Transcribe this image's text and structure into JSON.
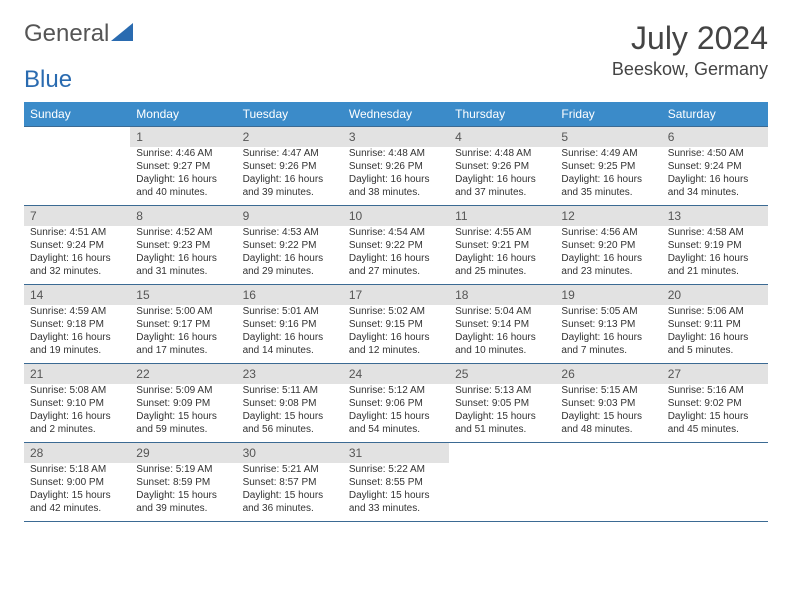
{
  "logo": {
    "text1": "General",
    "text2": "Blue"
  },
  "title": "July 2024",
  "location": "Beeskow, Germany",
  "header_bg": "#3b8bc9",
  "daynum_bg": "#e2e2e2",
  "border_color": "#3b6a93",
  "text_color": "#333333",
  "weekdays": [
    "Sunday",
    "Monday",
    "Tuesday",
    "Wednesday",
    "Thursday",
    "Friday",
    "Saturday"
  ],
  "weeks": [
    {
      "nums": [
        "",
        "1",
        "2",
        "3",
        "4",
        "5",
        "6"
      ],
      "cells": [
        null,
        {
          "sr": "Sunrise: 4:46 AM",
          "ss": "Sunset: 9:27 PM",
          "dl": "Daylight: 16 hours and 40 minutes."
        },
        {
          "sr": "Sunrise: 4:47 AM",
          "ss": "Sunset: 9:26 PM",
          "dl": "Daylight: 16 hours and 39 minutes."
        },
        {
          "sr": "Sunrise: 4:48 AM",
          "ss": "Sunset: 9:26 PM",
          "dl": "Daylight: 16 hours and 38 minutes."
        },
        {
          "sr": "Sunrise: 4:48 AM",
          "ss": "Sunset: 9:26 PM",
          "dl": "Daylight: 16 hours and 37 minutes."
        },
        {
          "sr": "Sunrise: 4:49 AM",
          "ss": "Sunset: 9:25 PM",
          "dl": "Daylight: 16 hours and 35 minutes."
        },
        {
          "sr": "Sunrise: 4:50 AM",
          "ss": "Sunset: 9:24 PM",
          "dl": "Daylight: 16 hours and 34 minutes."
        }
      ]
    },
    {
      "nums": [
        "7",
        "8",
        "9",
        "10",
        "11",
        "12",
        "13"
      ],
      "cells": [
        {
          "sr": "Sunrise: 4:51 AM",
          "ss": "Sunset: 9:24 PM",
          "dl": "Daylight: 16 hours and 32 minutes."
        },
        {
          "sr": "Sunrise: 4:52 AM",
          "ss": "Sunset: 9:23 PM",
          "dl": "Daylight: 16 hours and 31 minutes."
        },
        {
          "sr": "Sunrise: 4:53 AM",
          "ss": "Sunset: 9:22 PM",
          "dl": "Daylight: 16 hours and 29 minutes."
        },
        {
          "sr": "Sunrise: 4:54 AM",
          "ss": "Sunset: 9:22 PM",
          "dl": "Daylight: 16 hours and 27 minutes."
        },
        {
          "sr": "Sunrise: 4:55 AM",
          "ss": "Sunset: 9:21 PM",
          "dl": "Daylight: 16 hours and 25 minutes."
        },
        {
          "sr": "Sunrise: 4:56 AM",
          "ss": "Sunset: 9:20 PM",
          "dl": "Daylight: 16 hours and 23 minutes."
        },
        {
          "sr": "Sunrise: 4:58 AM",
          "ss": "Sunset: 9:19 PM",
          "dl": "Daylight: 16 hours and 21 minutes."
        }
      ]
    },
    {
      "nums": [
        "14",
        "15",
        "16",
        "17",
        "18",
        "19",
        "20"
      ],
      "cells": [
        {
          "sr": "Sunrise: 4:59 AM",
          "ss": "Sunset: 9:18 PM",
          "dl": "Daylight: 16 hours and 19 minutes."
        },
        {
          "sr": "Sunrise: 5:00 AM",
          "ss": "Sunset: 9:17 PM",
          "dl": "Daylight: 16 hours and 17 minutes."
        },
        {
          "sr": "Sunrise: 5:01 AM",
          "ss": "Sunset: 9:16 PM",
          "dl": "Daylight: 16 hours and 14 minutes."
        },
        {
          "sr": "Sunrise: 5:02 AM",
          "ss": "Sunset: 9:15 PM",
          "dl": "Daylight: 16 hours and 12 minutes."
        },
        {
          "sr": "Sunrise: 5:04 AM",
          "ss": "Sunset: 9:14 PM",
          "dl": "Daylight: 16 hours and 10 minutes."
        },
        {
          "sr": "Sunrise: 5:05 AM",
          "ss": "Sunset: 9:13 PM",
          "dl": "Daylight: 16 hours and 7 minutes."
        },
        {
          "sr": "Sunrise: 5:06 AM",
          "ss": "Sunset: 9:11 PM",
          "dl": "Daylight: 16 hours and 5 minutes."
        }
      ]
    },
    {
      "nums": [
        "21",
        "22",
        "23",
        "24",
        "25",
        "26",
        "27"
      ],
      "cells": [
        {
          "sr": "Sunrise: 5:08 AM",
          "ss": "Sunset: 9:10 PM",
          "dl": "Daylight: 16 hours and 2 minutes."
        },
        {
          "sr": "Sunrise: 5:09 AM",
          "ss": "Sunset: 9:09 PM",
          "dl": "Daylight: 15 hours and 59 minutes."
        },
        {
          "sr": "Sunrise: 5:11 AM",
          "ss": "Sunset: 9:08 PM",
          "dl": "Daylight: 15 hours and 56 minutes."
        },
        {
          "sr": "Sunrise: 5:12 AM",
          "ss": "Sunset: 9:06 PM",
          "dl": "Daylight: 15 hours and 54 minutes."
        },
        {
          "sr": "Sunrise: 5:13 AM",
          "ss": "Sunset: 9:05 PM",
          "dl": "Daylight: 15 hours and 51 minutes."
        },
        {
          "sr": "Sunrise: 5:15 AM",
          "ss": "Sunset: 9:03 PM",
          "dl": "Daylight: 15 hours and 48 minutes."
        },
        {
          "sr": "Sunrise: 5:16 AM",
          "ss": "Sunset: 9:02 PM",
          "dl": "Daylight: 15 hours and 45 minutes."
        }
      ]
    },
    {
      "nums": [
        "28",
        "29",
        "30",
        "31",
        "",
        "",
        ""
      ],
      "cells": [
        {
          "sr": "Sunrise: 5:18 AM",
          "ss": "Sunset: 9:00 PM",
          "dl": "Daylight: 15 hours and 42 minutes."
        },
        {
          "sr": "Sunrise: 5:19 AM",
          "ss": "Sunset: 8:59 PM",
          "dl": "Daylight: 15 hours and 39 minutes."
        },
        {
          "sr": "Sunrise: 5:21 AM",
          "ss": "Sunset: 8:57 PM",
          "dl": "Daylight: 15 hours and 36 minutes."
        },
        {
          "sr": "Sunrise: 5:22 AM",
          "ss": "Sunset: 8:55 PM",
          "dl": "Daylight: 15 hours and 33 minutes."
        },
        null,
        null,
        null
      ]
    }
  ]
}
